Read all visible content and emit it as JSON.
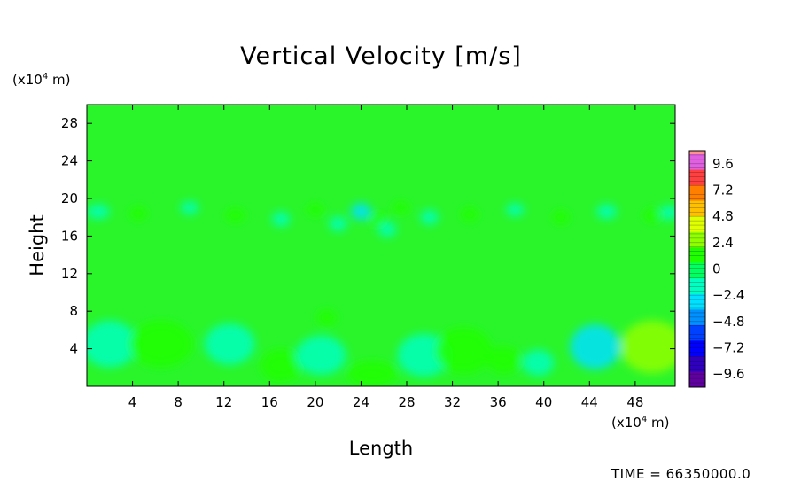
{
  "chart_data": {
    "type": "heatmap",
    "title": "Vertical Velocity [m/s]",
    "xlabel": "Length",
    "ylabel": "Height",
    "x_unit": {
      "prefix": "(x10",
      "exp": "4",
      "suffix": " m)"
    },
    "y_unit": {
      "prefix": "(x10",
      "exp": "4",
      "suffix": " m)"
    },
    "xlim": [
      0,
      51.5
    ],
    "ylim": [
      0,
      30
    ],
    "x_ticks": [
      4,
      8,
      12,
      16,
      20,
      24,
      28,
      32,
      36,
      40,
      44,
      48
    ],
    "y_ticks": [
      4,
      8,
      12,
      16,
      20,
      24,
      28
    ],
    "colorbar": {
      "ticks": [
        "9.6",
        "7.2",
        "4.8",
        "2.4",
        "0",
        "-2.4",
        "-4.8",
        "-7.2",
        "-9.6"
      ],
      "tick_values": [
        9.6,
        7.2,
        4.8,
        2.4,
        0,
        -2.4,
        -4.8,
        -7.2,
        -9.6
      ],
      "range": [
        -10.8,
        10.8
      ],
      "colors": [
        "#e060e0",
        "#ff4040",
        "#ff8000",
        "#ffc000",
        "#e0ff00",
        "#90ff00",
        "#20ff00",
        "#00ff60",
        "#00ffc0",
        "#00e0ff",
        "#0090ff",
        "#0040ff",
        "#0000ff",
        "#3000c0",
        "#6000a0"
      ],
      "top_color": "#ff9090"
    },
    "background_color": "#2af52a",
    "features": [
      {
        "x": 2,
        "y": 4.5,
        "rx": 2.4,
        "ry": 2.5,
        "v": -2.0
      },
      {
        "x": 6.5,
        "y": 4.5,
        "rx": 2.8,
        "ry": 2.5,
        "v": 1.8
      },
      {
        "x": 12.5,
        "y": 4.5,
        "rx": 2.2,
        "ry": 2.2,
        "v": -1.5
      },
      {
        "x": 17,
        "y": 2.2,
        "rx": 1.8,
        "ry": 1.8,
        "v": 1.0
      },
      {
        "x": 20.5,
        "y": 3.3,
        "rx": 2.2,
        "ry": 2.1,
        "v": -1.6
      },
      {
        "x": 21,
        "y": 7.3,
        "rx": 0.9,
        "ry": 0.9,
        "v": 0.9
      },
      {
        "x": 25,
        "y": 1.3,
        "rx": 2.2,
        "ry": 1.4,
        "v": 1.0
      },
      {
        "x": 29.5,
        "y": 3.3,
        "rx": 2.3,
        "ry": 2.3,
        "v": -1.5
      },
      {
        "x": 33,
        "y": 3.8,
        "rx": 2.5,
        "ry": 2.5,
        "v": 1.8
      },
      {
        "x": 36.5,
        "y": 2.8,
        "rx": 1.5,
        "ry": 1.5,
        "v": 1.2
      },
      {
        "x": 39.5,
        "y": 2.5,
        "rx": 1.4,
        "ry": 1.4,
        "v": -1.0
      },
      {
        "x": 44.5,
        "y": 4.2,
        "rx": 2.2,
        "ry": 2.4,
        "v": -2.7
      },
      {
        "x": 49.5,
        "y": 4.2,
        "rx": 2.8,
        "ry": 2.8,
        "v": 3.5
      },
      {
        "x": 1,
        "y": 18.6,
        "rx": 1.0,
        "ry": 0.8,
        "v": -1.5
      },
      {
        "x": 4.5,
        "y": 18.4,
        "rx": 0.8,
        "ry": 0.8,
        "v": 1.2
      },
      {
        "x": 9,
        "y": 19,
        "rx": 0.8,
        "ry": 0.7,
        "v": -1.0
      },
      {
        "x": 13,
        "y": 18.2,
        "rx": 0.9,
        "ry": 0.8,
        "v": 0.8
      },
      {
        "x": 17,
        "y": 17.8,
        "rx": 0.8,
        "ry": 0.8,
        "v": -0.8
      },
      {
        "x": 20,
        "y": 18.8,
        "rx": 0.8,
        "ry": 0.7,
        "v": 1.0
      },
      {
        "x": 22,
        "y": 17.3,
        "rx": 0.8,
        "ry": 0.8,
        "v": -1.0
      },
      {
        "x": 24,
        "y": 18.6,
        "rx": 0.9,
        "ry": 0.9,
        "v": -3.0
      },
      {
        "x": 25.5,
        "y": 17.7,
        "rx": 0.8,
        "ry": 0.8,
        "v": 1.5
      },
      {
        "x": 26.3,
        "y": 16.7,
        "rx": 0.8,
        "ry": 0.8,
        "v": -2.0
      },
      {
        "x": 27.5,
        "y": 19,
        "rx": 0.8,
        "ry": 0.7,
        "v": 1.0
      },
      {
        "x": 30,
        "y": 18,
        "rx": 0.8,
        "ry": 0.8,
        "v": -1.0
      },
      {
        "x": 33.5,
        "y": 18.3,
        "rx": 0.8,
        "ry": 0.8,
        "v": 0.9
      },
      {
        "x": 37.5,
        "y": 18.8,
        "rx": 0.8,
        "ry": 0.7,
        "v": -0.9
      },
      {
        "x": 41.5,
        "y": 18,
        "rx": 0.8,
        "ry": 0.8,
        "v": 0.8
      },
      {
        "x": 45.5,
        "y": 18.6,
        "rx": 0.9,
        "ry": 0.8,
        "v": -1.2
      },
      {
        "x": 49.5,
        "y": 18.2,
        "rx": 0.8,
        "ry": 0.8,
        "v": 1.0
      },
      {
        "x": 51,
        "y": 18.5,
        "rx": 0.8,
        "ry": 0.8,
        "v": -1.3
      }
    ]
  },
  "footer": {
    "time_label": "TIME =",
    "time_value": "66350000.0"
  }
}
